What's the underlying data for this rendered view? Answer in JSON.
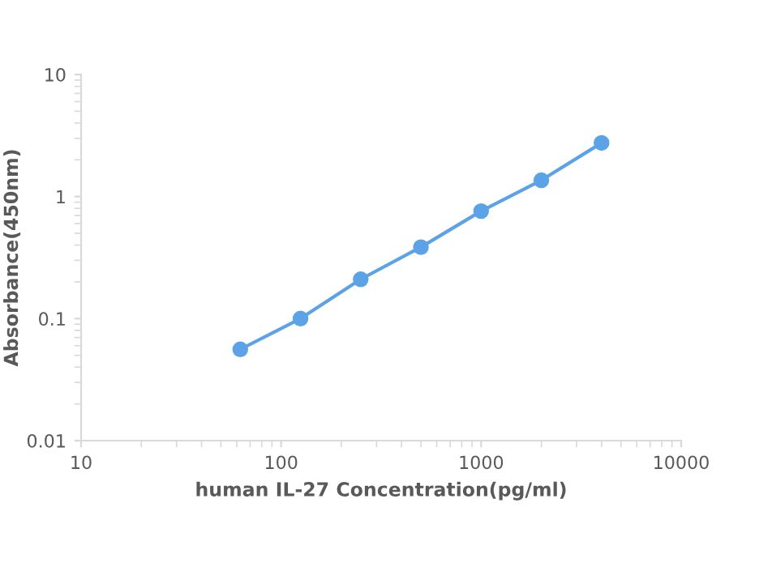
{
  "chart_data": {
    "type": "line",
    "xlabel": "human IL-27 Concentration(pg/ml)",
    "ylabel": "Absorbance(450nm)",
    "x": [
      62.5,
      125,
      250,
      500,
      1000,
      2000,
      4000
    ],
    "series": [
      {
        "color": "#5ba3e6",
        "values": [
          0.056,
          0.1,
          0.21,
          0.385,
          0.76,
          1.36,
          2.75
        ]
      }
    ],
    "log": "xy",
    "xlim": [
      10,
      10000
    ],
    "ylim": [
      0.01,
      10
    ],
    "xticks": [
      10,
      100,
      1000,
      10000
    ],
    "yticks": [
      0.01,
      0.1,
      1,
      10
    ],
    "grid": false,
    "marker": "circle",
    "line_style": "solid"
  }
}
